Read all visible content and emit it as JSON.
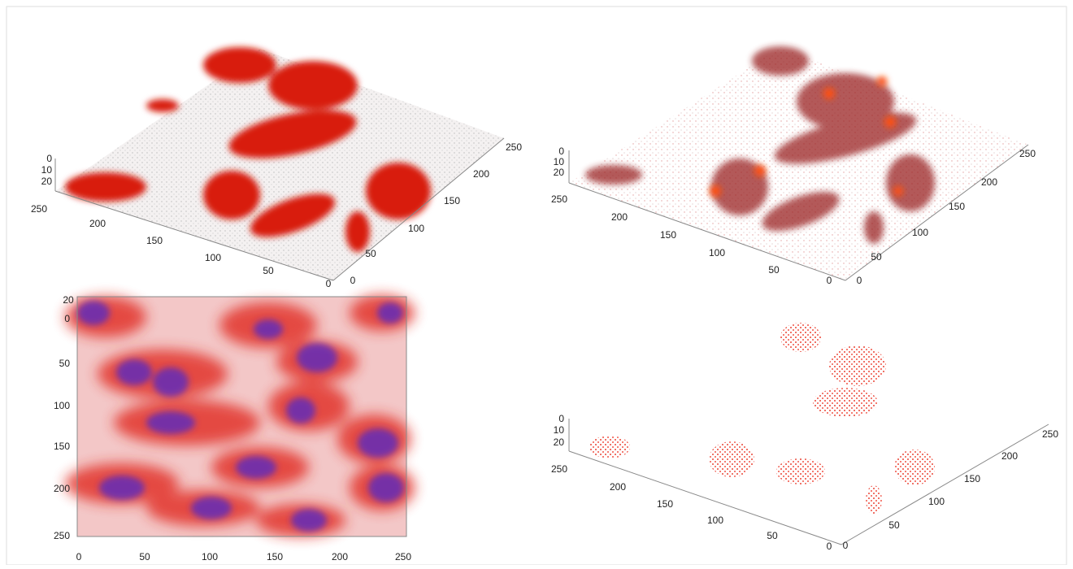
{
  "panels": [
    {
      "z_ticks": [
        0,
        10,
        20
      ],
      "left_ticks": [
        250,
        200,
        150,
        100,
        50,
        0
      ],
      "right_ticks": [
        0,
        50,
        100,
        150,
        200,
        250
      ]
    },
    {
      "z_ticks": [
        0,
        10,
        20
      ],
      "left_ticks": [
        250,
        200,
        150,
        100,
        50,
        0
      ],
      "right_ticks": [
        0,
        50,
        100,
        150,
        200,
        250
      ]
    },
    {
      "corner_label": 20,
      "y_ticks": [
        0,
        50,
        100,
        150,
        200,
        250
      ],
      "x_ticks": [
        0,
        50,
        100,
        150,
        200,
        250
      ]
    },
    {
      "z_ticks": [
        0,
        10,
        20
      ],
      "left_ticks": [
        250,
        200,
        150,
        100,
        50,
        0
      ],
      "right_ticks": [
        0,
        50,
        100,
        150,
        200,
        250
      ]
    }
  ]
}
